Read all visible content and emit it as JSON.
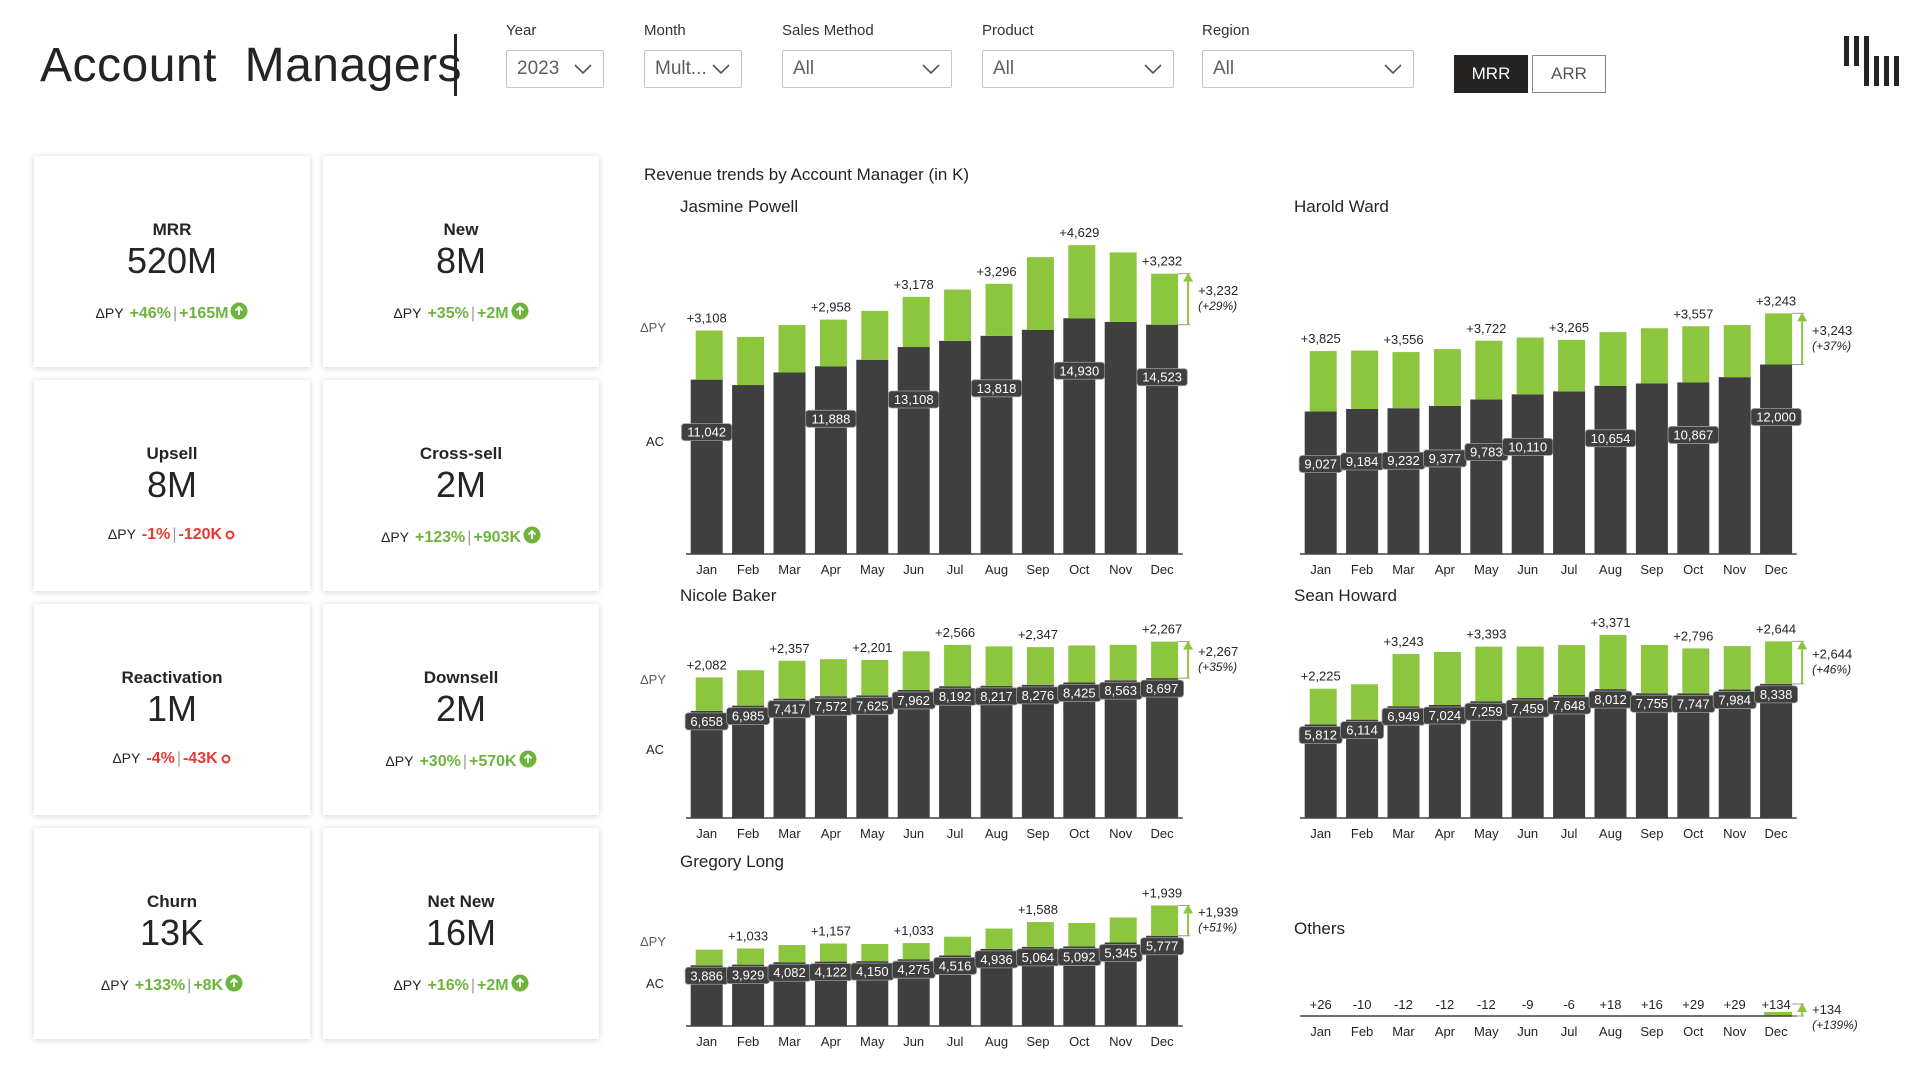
{
  "header": {
    "title": "Account  Managers",
    "filters": [
      {
        "label": "Year",
        "value": "2023"
      },
      {
        "label": "Month",
        "value": "Mult..."
      },
      {
        "label": "Sales Method",
        "value": "All"
      },
      {
        "label": "Product",
        "value": "All"
      },
      {
        "label": "Region",
        "value": "All"
      }
    ],
    "toggle": {
      "active": "MRR",
      "inactive": "ARR"
    }
  },
  "kpis": [
    {
      "title": "MRR",
      "value": "520M",
      "py_label": "ΔPY",
      "delta_pct": "+46%",
      "delta_abs": "+165M",
      "direction": "up"
    },
    {
      "title": "New",
      "value": "8M",
      "py_label": "ΔPY",
      "delta_pct": "+35%",
      "delta_abs": "+2M",
      "direction": "up"
    },
    {
      "title": "Upsell",
      "value": "8M",
      "py_label": "ΔPY",
      "delta_pct": "-1%",
      "delta_abs": "-120K",
      "direction": "down"
    },
    {
      "title": "Cross-sell",
      "value": "2M",
      "py_label": "ΔPY",
      "delta_pct": "+123%",
      "delta_abs": "+903K",
      "direction": "up"
    },
    {
      "title": "Reactivation",
      "value": "1M",
      "py_label": "ΔPY",
      "delta_pct": "-4%",
      "delta_abs": "-43K",
      "direction": "down"
    },
    {
      "title": "Downsell",
      "value": "2M",
      "py_label": "ΔPY",
      "delta_pct": "+30%",
      "delta_abs": "+570K",
      "direction": "up"
    },
    {
      "title": "Churn",
      "value": "13K",
      "py_label": "ΔPY",
      "delta_pct": "+133%",
      "delta_abs": "+8K",
      "direction": "up"
    },
    {
      "title": "Net New",
      "value": "16M",
      "py_label": "ΔPY",
      "delta_pct": "+16%",
      "delta_abs": "+2M",
      "direction": "up"
    }
  ],
  "colors": {
    "ac": "#3f3f3f",
    "delta_pos": "#8cc63f",
    "text_pos": "#6fb33f",
    "text_neg": "#e8382f",
    "axis": "#404040"
  },
  "section_title": "Revenue trends by Account Manager (in K)",
  "chart_data": [
    {
      "type": "bar",
      "title": "Jasmine Powell",
      "y_labels": [
        "ΔPY",
        "AC"
      ],
      "categories": [
        "Jan",
        "Feb",
        "Mar",
        "Apr",
        "May",
        "Jun",
        "Jul",
        "Aug",
        "Sep",
        "Oct",
        "Nov",
        "Dec"
      ],
      "series": [
        {
          "name": "AC",
          "values": [
            11042,
            10700,
            11500,
            11888,
            12300,
            13108,
            13500,
            13818,
            14200,
            14930,
            14700,
            14523
          ]
        },
        {
          "name": "ΔPY",
          "values": [
            3108,
            3050,
            3000,
            2958,
            3100,
            3178,
            3250,
            3296,
            4600,
            4629,
            4400,
            3232
          ]
        }
      ],
      "delta_labels": [
        "+3,108",
        "",
        "",
        "+2,958",
        "",
        "+3,178",
        "",
        "+3,296",
        "",
        "+4,629",
        "",
        "+3,232"
      ],
      "ac_labels": [
        "11,042",
        "",
        "",
        "11,888",
        "",
        "13,108",
        "",
        "13,818",
        "",
        "14,930",
        "",
        "14,523"
      ],
      "end_label": "+3,232",
      "end_pct": "(+29%)"
    },
    {
      "type": "bar",
      "title": "Harold Ward",
      "y_labels": [],
      "categories": [
        "Jan",
        "Feb",
        "Mar",
        "Apr",
        "May",
        "Jun",
        "Jul",
        "Aug",
        "Sep",
        "Oct",
        "Nov",
        "Dec"
      ],
      "series": [
        {
          "name": "AC",
          "values": [
            9027,
            9184,
            9232,
            9377,
            9783,
            10110,
            10300,
            10654,
            10800,
            10867,
            11200,
            12000
          ]
        },
        {
          "name": "ΔPY",
          "values": [
            3825,
            3700,
            3556,
            3600,
            3722,
            3600,
            3265,
            3400,
            3500,
            3557,
            3300,
            3243
          ]
        }
      ],
      "delta_labels": [
        "+3,825",
        "",
        "+3,556",
        "",
        "+3,722",
        "",
        "+3,265",
        "",
        "",
        "+3,557",
        "",
        "+3,243"
      ],
      "ac_labels": [
        "9,027",
        "9,184",
        "9,232",
        "9,377",
        "9,783",
        "10,110",
        "",
        "10,654",
        "",
        "10,867",
        "",
        "12,000"
      ],
      "end_label": "+3,243",
      "end_pct": "(+37%)"
    },
    {
      "type": "bar",
      "title": "Nicole Baker",
      "y_labels": [
        "ΔPY",
        "AC"
      ],
      "categories": [
        "Jan",
        "Feb",
        "Mar",
        "Apr",
        "May",
        "Jun",
        "Jul",
        "Aug",
        "Sep",
        "Oct",
        "Nov",
        "Dec"
      ],
      "series": [
        {
          "name": "AC",
          "values": [
            6658,
            6985,
            7417,
            7572,
            7625,
            7962,
            8192,
            8217,
            8276,
            8425,
            8563,
            8697
          ]
        },
        {
          "name": "ΔPY",
          "values": [
            2082,
            2200,
            2357,
            2300,
            2201,
            2400,
            2566,
            2450,
            2347,
            2300,
            2200,
            2267
          ]
        }
      ],
      "delta_labels": [
        "+2,082",
        "",
        "+2,357",
        "",
        "+2,201",
        "",
        "+2,566",
        "",
        "+2,347",
        "",
        "",
        "+2,267"
      ],
      "ac_labels": [
        "6,658",
        "6,985",
        "7,417",
        "7,572",
        "7,625",
        "7,962",
        "8,192",
        "8,217",
        "8,276",
        "8,425",
        "8,563",
        "8,697"
      ],
      "end_label": "+2,267",
      "end_pct": "(+35%)"
    },
    {
      "type": "bar",
      "title": "Sean Howard",
      "y_labels": [],
      "categories": [
        "Jan",
        "Feb",
        "Mar",
        "Apr",
        "May",
        "Jun",
        "Jul",
        "Aug",
        "Sep",
        "Oct",
        "Nov",
        "Dec"
      ],
      "series": [
        {
          "name": "AC",
          "values": [
            5812,
            6114,
            6949,
            7024,
            7259,
            7459,
            7648,
            8012,
            7755,
            7747,
            7984,
            8338
          ]
        },
        {
          "name": "ΔPY",
          "values": [
            2225,
            2200,
            3243,
            3300,
            3393,
            3200,
            3100,
            3371,
            3000,
            2796,
            2700,
            2644
          ]
        }
      ],
      "delta_labels": [
        "+2,225",
        "",
        "+3,243",
        "",
        "+3,393",
        "",
        "",
        "+3,371",
        "",
        "+2,796",
        "",
        "+2,644"
      ],
      "ac_labels": [
        "5,812",
        "6,114",
        "6,949",
        "7,024",
        "7,259",
        "7,459",
        "7,648",
        "8,012",
        "7,755",
        "7,747",
        "7,984",
        "8,338"
      ],
      "end_label": "+2,644",
      "end_pct": "(+46%)"
    },
    {
      "type": "bar",
      "title": "Gregory Long",
      "y_labels": [
        "ΔPY",
        "AC"
      ],
      "categories": [
        "Jan",
        "Feb",
        "Mar",
        "Apr",
        "May",
        "Jun",
        "Jul",
        "Aug",
        "Sep",
        "Oct",
        "Nov",
        "Dec"
      ],
      "series": [
        {
          "name": "AC",
          "values": [
            3886,
            3929,
            4082,
            4122,
            4150,
            4275,
            4516,
            4936,
            5064,
            5092,
            5345,
            5777
          ]
        },
        {
          "name": "ΔPY",
          "values": [
            1000,
            1033,
            1100,
            1157,
            1100,
            1033,
            1200,
            1300,
            1588,
            1500,
            1600,
            1939
          ]
        }
      ],
      "delta_labels": [
        "",
        "+1,033",
        "",
        "+1,157",
        "",
        "+1,033",
        "",
        "",
        "+1,588",
        "",
        "",
        "+1,939"
      ],
      "ac_labels": [
        "3,886",
        "3,929",
        "4,082",
        "4,122",
        "4,150",
        "4,275",
        "4,516",
        "4,936",
        "5,064",
        "5,092",
        "5,345",
        "5,777"
      ],
      "end_label": "+1,939",
      "end_pct": "(+51%)"
    },
    {
      "type": "bar",
      "title": "Others",
      "y_labels": [],
      "categories": [
        "Jan",
        "Feb",
        "Mar",
        "Apr",
        "May",
        "Jun",
        "Jul",
        "Aug",
        "Sep",
        "Oct",
        "Nov",
        "Dec"
      ],
      "series": [
        {
          "name": "AC",
          "values": [
            26,
            10,
            12,
            12,
            12,
            9,
            6,
            18,
            16,
            29,
            29,
            134
          ]
        },
        {
          "name": "ΔPY",
          "values": [
            26,
            -10,
            -12,
            -12,
            -12,
            -9,
            -6,
            18,
            16,
            29,
            29,
            134
          ]
        }
      ],
      "delta_labels": [
        "+26",
        "-10",
        "-12",
        "-12",
        "-12",
        "-9",
        "-6",
        "+18",
        "+16",
        "+29",
        "+29",
        "+134"
      ],
      "ac_labels": [],
      "end_label": "+134",
      "end_pct": "(+139%)"
    }
  ]
}
